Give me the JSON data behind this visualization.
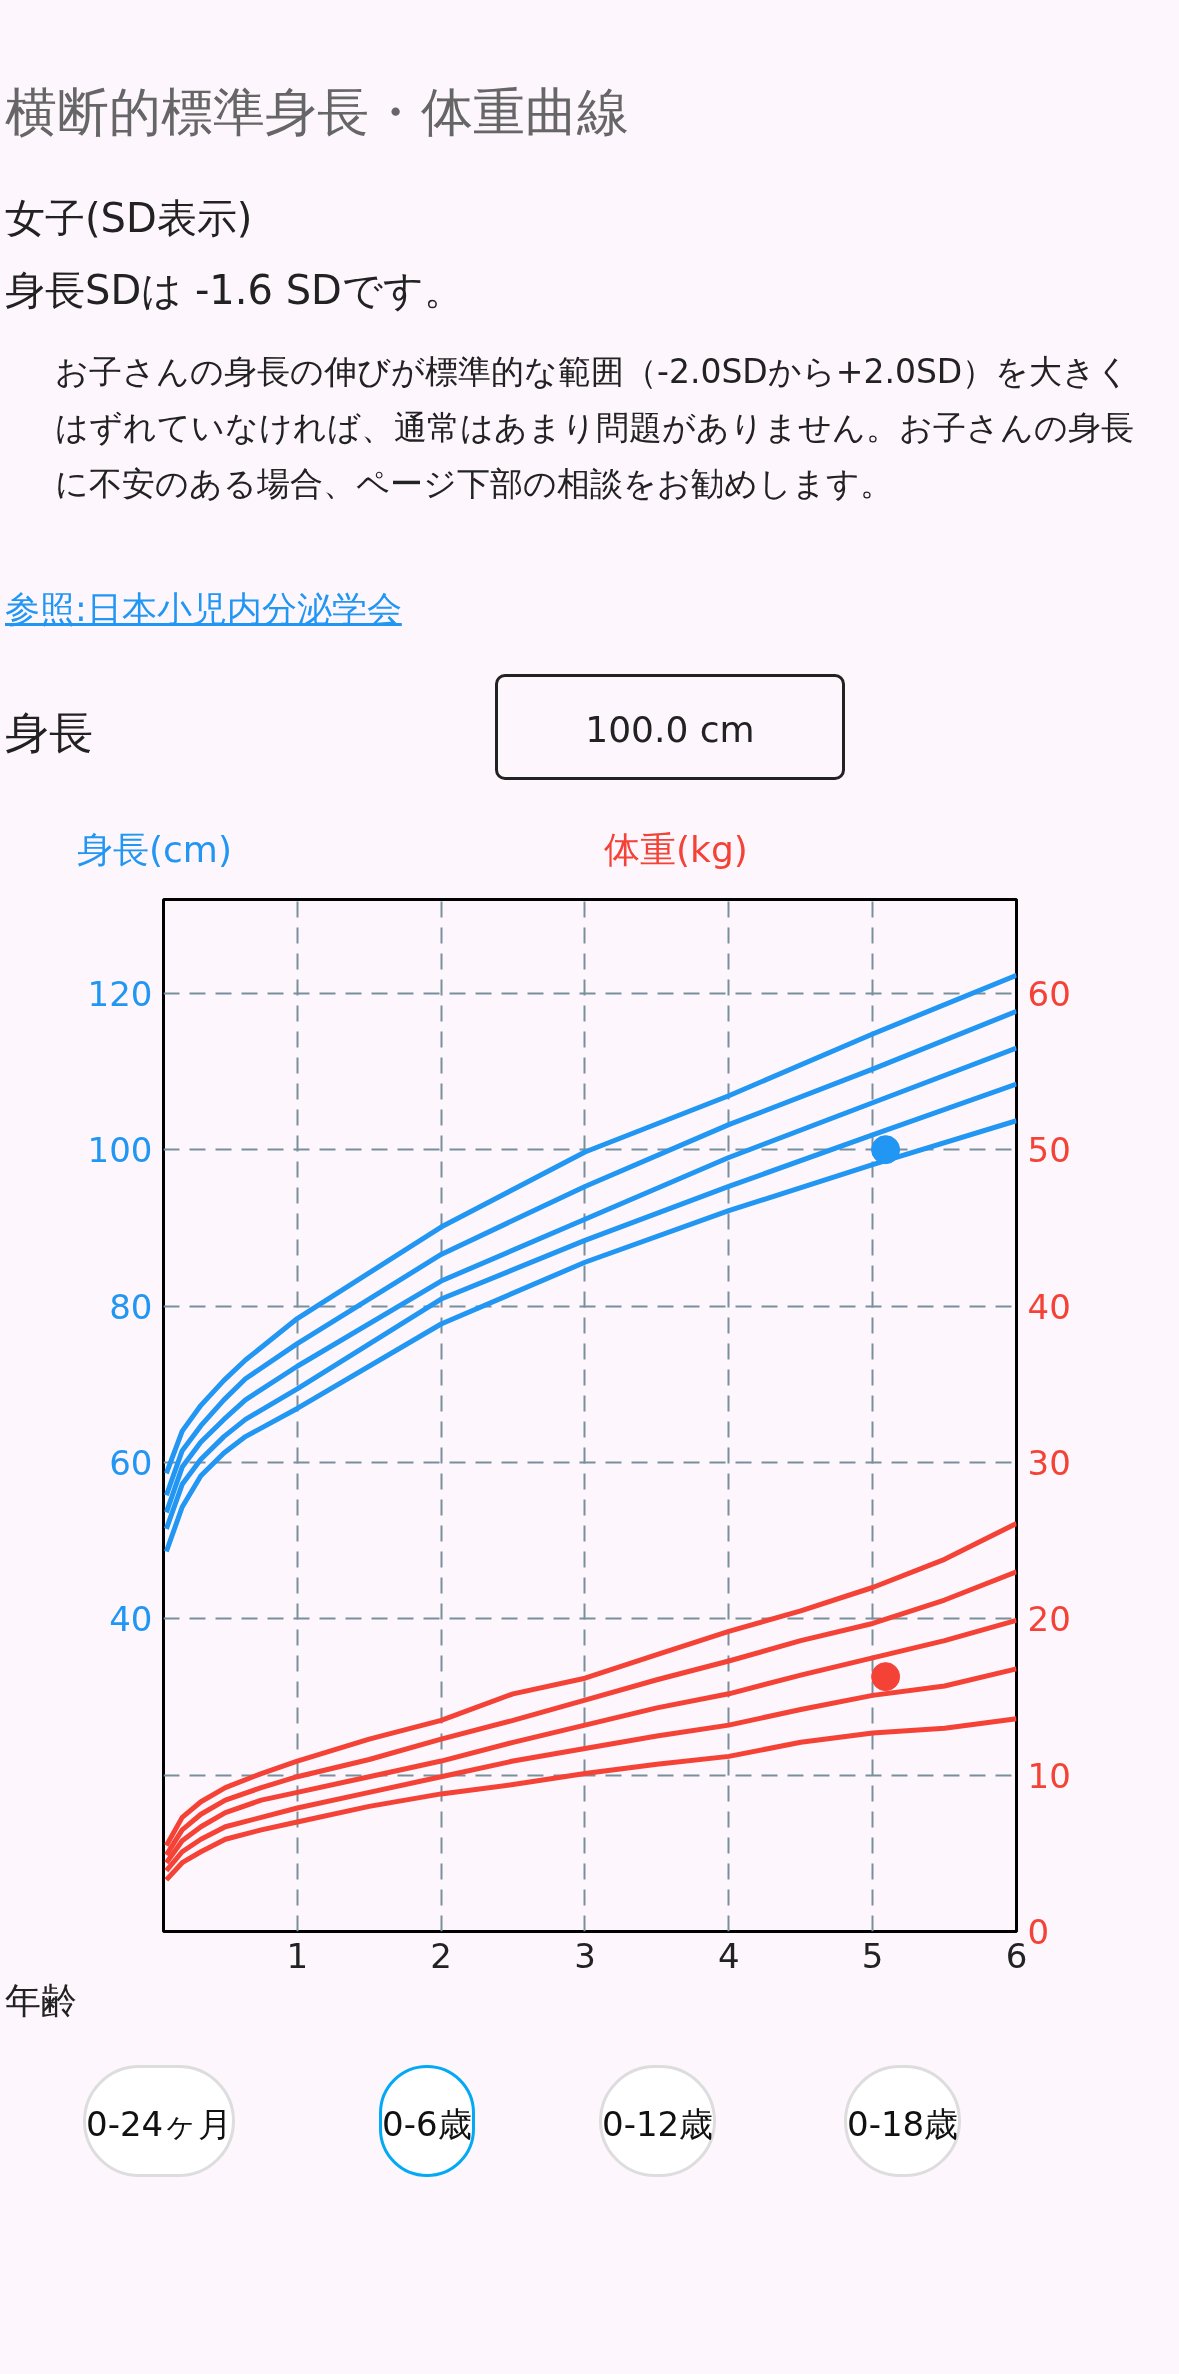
{
  "chart_data": {
    "type": "line",
    "title": "横断的標準身長・体重曲線",
    "subtitle": "女子(SD表示)",
    "annotations": [
      "身長SDは -1.6 SDです。",
      "お子さんの身長の伸びが標準的な範囲（-2.0SDから+2.0SD）を大きくはずれていなければ、通常はあまり問題がありません。お子さんの身長に不安のある場合、ページ下部の相談をお勧めします。",
      "参照:日本小児内分泌学会",
      "身長",
      "100.0 cm",
      "0-24ヶ月",
      "0-6歳",
      "0-12歳",
      "0-18歳"
    ],
    "xlabel": "年齢",
    "ylabel": "身長(cm)",
    "y2label": "体重(kg)",
    "xlim": [
      0.07,
      6
    ],
    "ylim": [
      0,
      132
    ],
    "y2lim": [
      0,
      66
    ],
    "xticks": [
      1,
      2,
      3,
      4,
      5,
      6
    ],
    "yticks": [
      {
        "value": 20,
        "label": null
      },
      40,
      60,
      80,
      100,
      120
    ],
    "y2ticks": [
      0,
      10,
      20,
      30,
      40,
      50,
      60
    ],
    "grid": true,
    "x": [
      0.09,
      0.2,
      0.33,
      0.49,
      0.64,
      1,
      2,
      3,
      4,
      5,
      6
    ],
    "series": [
      {
        "color": "#2196f3",
        "values": [
          58.6,
          64,
          67.3,
          70.5,
          73.1,
          78.4,
          90.1,
          99.7,
          106.9,
          114.8,
          122.3
        ]
      },
      {
        "color": "#2196f3",
        "values": [
          55.8,
          61.5,
          64.7,
          68,
          70.7,
          75.2,
          86.6,
          95.3,
          103.2,
          110.3,
          117.7
        ]
      },
      {
        "color": "#2196f3",
        "values": [
          53.6,
          59.4,
          62.6,
          65.5,
          68,
          72.3,
          83.2,
          91.1,
          99,
          106,
          113
        ]
      },
      {
        "color": "#2196f3",
        "values": [
          51.5,
          57.2,
          60.4,
          63.3,
          65.5,
          69.4,
          80.9,
          88.4,
          95.3,
          101.9,
          108.4
        ]
      },
      {
        "color": "#2196f3",
        "values": [
          48.6,
          54.3,
          58.3,
          61.2,
          63.3,
          66.9,
          77.7,
          85.6,
          92.2,
          98.1,
          103.7
        ]
      },
      {
        "color": "#f44336",
        "axis": "y2",
        "x": [
          0.09,
          0.2,
          0.33,
          0.5,
          0.75,
          1,
          1.5,
          2,
          2.5,
          3,
          3.5,
          4,
          4.5,
          5,
          5.5,
          6
        ],
        "values": [
          5.5,
          7.3,
          8.3,
          9.2,
          10.1,
          10.9,
          12.3,
          13.5,
          15.2,
          16.2,
          17.7,
          19.2,
          20.5,
          22,
          23.8,
          26.1
        ]
      },
      {
        "color": "#f44336",
        "axis": "y2",
        "x": [
          0.09,
          0.2,
          0.33,
          0.5,
          0.75,
          1,
          1.5,
          2,
          2.5,
          3,
          3.5,
          4,
          4.5,
          5,
          5.5,
          6
        ],
        "values": [
          4.9,
          6.5,
          7.5,
          8.4,
          9.2,
          9.9,
          11,
          12.3,
          13.5,
          14.8,
          16.1,
          17.3,
          18.6,
          19.7,
          21.2,
          23
        ]
      },
      {
        "color": "#f44336",
        "axis": "y2",
        "x": [
          0.09,
          0.2,
          0.33,
          0.5,
          0.75,
          1,
          1.5,
          2,
          2.5,
          3,
          3.5,
          4,
          4.5,
          5,
          5.5,
          6
        ],
        "values": [
          4.4,
          5.8,
          6.7,
          7.6,
          8.4,
          8.9,
          9.9,
          10.9,
          12.1,
          13.2,
          14.3,
          15.2,
          16.4,
          17.5,
          18.6,
          19.9
        ]
      },
      {
        "color": "#f44336",
        "axis": "y2",
        "x": [
          0.09,
          0.2,
          0.33,
          0.5,
          0.75,
          1,
          1.5,
          2,
          2.5,
          3,
          3.5,
          4,
          4.5,
          5,
          5.5,
          6
        ],
        "values": [
          3.9,
          5.1,
          5.9,
          6.7,
          7.3,
          7.9,
          8.9,
          9.9,
          10.9,
          11.7,
          12.5,
          13.2,
          14.2,
          15.1,
          15.7,
          16.8
        ]
      },
      {
        "color": "#f44336",
        "axis": "y2",
        "x": [
          0.09,
          0.2,
          0.33,
          0.5,
          0.75,
          1,
          1.5,
          2,
          2.5,
          3,
          3.5,
          4,
          4.5,
          5,
          5.5,
          6
        ],
        "values": [
          3.3,
          4.4,
          5.1,
          5.9,
          6.5,
          7,
          8,
          8.8,
          9.4,
          10.1,
          10.7,
          11.2,
          12.1,
          12.7,
          13,
          13.6
        ]
      },
      {
        "type": "scatter",
        "marker": "circle",
        "color": "#2196f3",
        "x": [
          5.09
        ],
        "values": [
          100
        ]
      },
      {
        "type": "scatter",
        "marker": "circle",
        "color": "#f44336",
        "axis": "y2",
        "x": [
          5.09
        ],
        "values": [
          16.3
        ]
      }
    ]
  }
}
